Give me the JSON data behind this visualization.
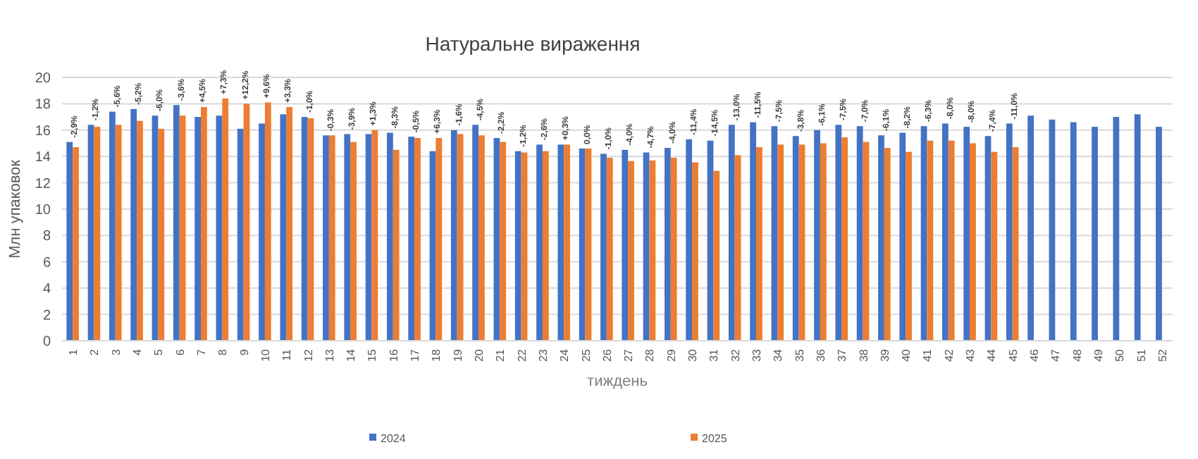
{
  "chart_data": {
    "type": "bar",
    "title": "Натуральне вираження",
    "xlabel": "тиждень",
    "ylabel": "Млн упаковок",
    "categories": [
      "1",
      "2",
      "3",
      "4",
      "5",
      "6",
      "7",
      "8",
      "9",
      "10",
      "11",
      "12",
      "13",
      "14",
      "15",
      "16",
      "17",
      "18",
      "19",
      "20",
      "21",
      "22",
      "23",
      "24",
      "25",
      "26",
      "27",
      "28",
      "29",
      "30",
      "31",
      "32",
      "33",
      "34",
      "35",
      "36",
      "37",
      "38",
      "39",
      "40",
      "41",
      "42",
      "43",
      "44",
      "45",
      "46",
      "47",
      "48",
      "49",
      "50",
      "51",
      "52"
    ],
    "series": [
      {
        "name": "2024",
        "color": "#4472c4",
        "values": [
          15.1,
          16.4,
          17.4,
          17.6,
          17.1,
          17.9,
          17.0,
          17.1,
          16.1,
          16.5,
          17.2,
          17.0,
          15.6,
          15.7,
          15.7,
          15.8,
          15.5,
          14.4,
          16.0,
          16.4,
          15.4,
          14.4,
          14.9,
          14.9,
          14.6,
          14.2,
          14.5,
          14.3,
          14.65,
          15.3,
          15.2,
          16.4,
          16.6,
          16.3,
          15.55,
          16.0,
          16.4,
          16.3,
          15.6,
          15.8,
          16.3,
          16.5,
          16.25,
          15.55,
          16.5,
          17.1,
          16.8,
          16.6,
          16.25,
          17.0,
          17.2,
          16.25
        ]
      },
      {
        "name": "2025",
        "color": "#ed7d31",
        "values": [
          14.7,
          16.25,
          16.4,
          16.7,
          16.1,
          17.1,
          17.75,
          18.4,
          18.0,
          18.1,
          17.75,
          16.9,
          15.6,
          15.1,
          16.0,
          14.5,
          15.4,
          15.4,
          15.7,
          15.6,
          15.1,
          14.3,
          14.4,
          14.9,
          14.6,
          13.9,
          13.65,
          13.7,
          13.9,
          13.55,
          12.9,
          14.1,
          14.7,
          14.9,
          14.9,
          15.0,
          15.45,
          15.1,
          14.65,
          14.35,
          15.2,
          15.2,
          15.0,
          14.35,
          14.7,
          null,
          null,
          null,
          null,
          null,
          null,
          null
        ]
      }
    ],
    "annotations": [
      {
        "text": "-2,9%",
        "x": "1",
        "y": 15.1
      },
      {
        "text": "-1,2%",
        "x": "2",
        "y": 16.4
      },
      {
        "text": "-5,6%",
        "x": "3",
        "y": 17.4
      },
      {
        "text": "-5,2%",
        "x": "4",
        "y": 17.6
      },
      {
        "text": "-6,0%",
        "x": "5",
        "y": 17.1
      },
      {
        "text": "-3,6%",
        "x": "6",
        "y": 17.9
      },
      {
        "text": "+4,5%",
        "x": "7",
        "y": 17.75
      },
      {
        "text": "+7,3%",
        "x": "8",
        "y": 18.4
      },
      {
        "text": "+12,2%",
        "x": "9",
        "y": 18.0
      },
      {
        "text": "+9,6%",
        "x": "10",
        "y": 18.1
      },
      {
        "text": "+3,3%",
        "x": "11",
        "y": 17.75
      },
      {
        "text": "-1,0%",
        "x": "12",
        "y": 17.0
      },
      {
        "text": "-0,3%",
        "x": "13",
        "y": 15.6
      },
      {
        "text": "-3,9%",
        "x": "14",
        "y": 15.7
      },
      {
        "text": "+1,3%",
        "x": "15",
        "y": 16.0
      },
      {
        "text": "-8,3%",
        "x": "16",
        "y": 15.8
      },
      {
        "text": "-0,5%",
        "x": "17",
        "y": 15.5
      },
      {
        "text": "+6,3%",
        "x": "18",
        "y": 15.4
      },
      {
        "text": "-1,6%",
        "x": "19",
        "y": 16.0
      },
      {
        "text": "-4,5%",
        "x": "20",
        "y": 16.4
      },
      {
        "text": "-2,2%",
        "x": "21",
        "y": 15.4
      },
      {
        "text": "-1,2%",
        "x": "22",
        "y": 14.4
      },
      {
        "text": "-2,6%",
        "x": "23",
        "y": 14.9
      },
      {
        "text": "+0,3%",
        "x": "24",
        "y": 14.9
      },
      {
        "text": "0,0%",
        "x": "25",
        "y": 14.6
      },
      {
        "text": "-1,0%",
        "x": "26",
        "y": 14.2
      },
      {
        "text": "-4,0%",
        "x": "27",
        "y": 14.5
      },
      {
        "text": "-4,7%",
        "x": "28",
        "y": 14.3
      },
      {
        "text": "-4,0%",
        "x": "29",
        "y": 14.65
      },
      {
        "text": "-11,4%",
        "x": "30",
        "y": 15.3
      },
      {
        "text": "-14,5%",
        "x": "31",
        "y": 15.2
      },
      {
        "text": "-13,0%",
        "x": "32",
        "y": 16.4
      },
      {
        "text": "-11,5%",
        "x": "33",
        "y": 16.6
      },
      {
        "text": "-7,5%",
        "x": "34",
        "y": 16.3
      },
      {
        "text": "-3,8%",
        "x": "35",
        "y": 15.55
      },
      {
        "text": "-6,1%",
        "x": "36",
        "y": 16.0
      },
      {
        "text": "-7,5%",
        "x": "37",
        "y": 16.4
      },
      {
        "text": "-7,0%",
        "x": "38",
        "y": 16.3
      },
      {
        "text": "-6,1%",
        "x": "39",
        "y": 15.6
      },
      {
        "text": "-8,2%",
        "x": "40",
        "y": 15.8
      },
      {
        "text": "-6,3%",
        "x": "41",
        "y": 16.3
      },
      {
        "text": "-8,0%",
        "x": "42",
        "y": 16.5
      },
      {
        "text": "-8,0%",
        "x": "43",
        "y": 16.25
      },
      {
        "text": "-7,4%",
        "x": "44",
        "y": 15.55
      },
      {
        "text": "-11,0%",
        "x": "45",
        "y": 16.5
      }
    ],
    "ylim": [
      0,
      20
    ],
    "yticks": [
      0,
      2,
      4,
      6,
      8,
      10,
      12,
      14,
      16,
      18,
      20
    ],
    "grid": "y",
    "legend": "bottom"
  }
}
